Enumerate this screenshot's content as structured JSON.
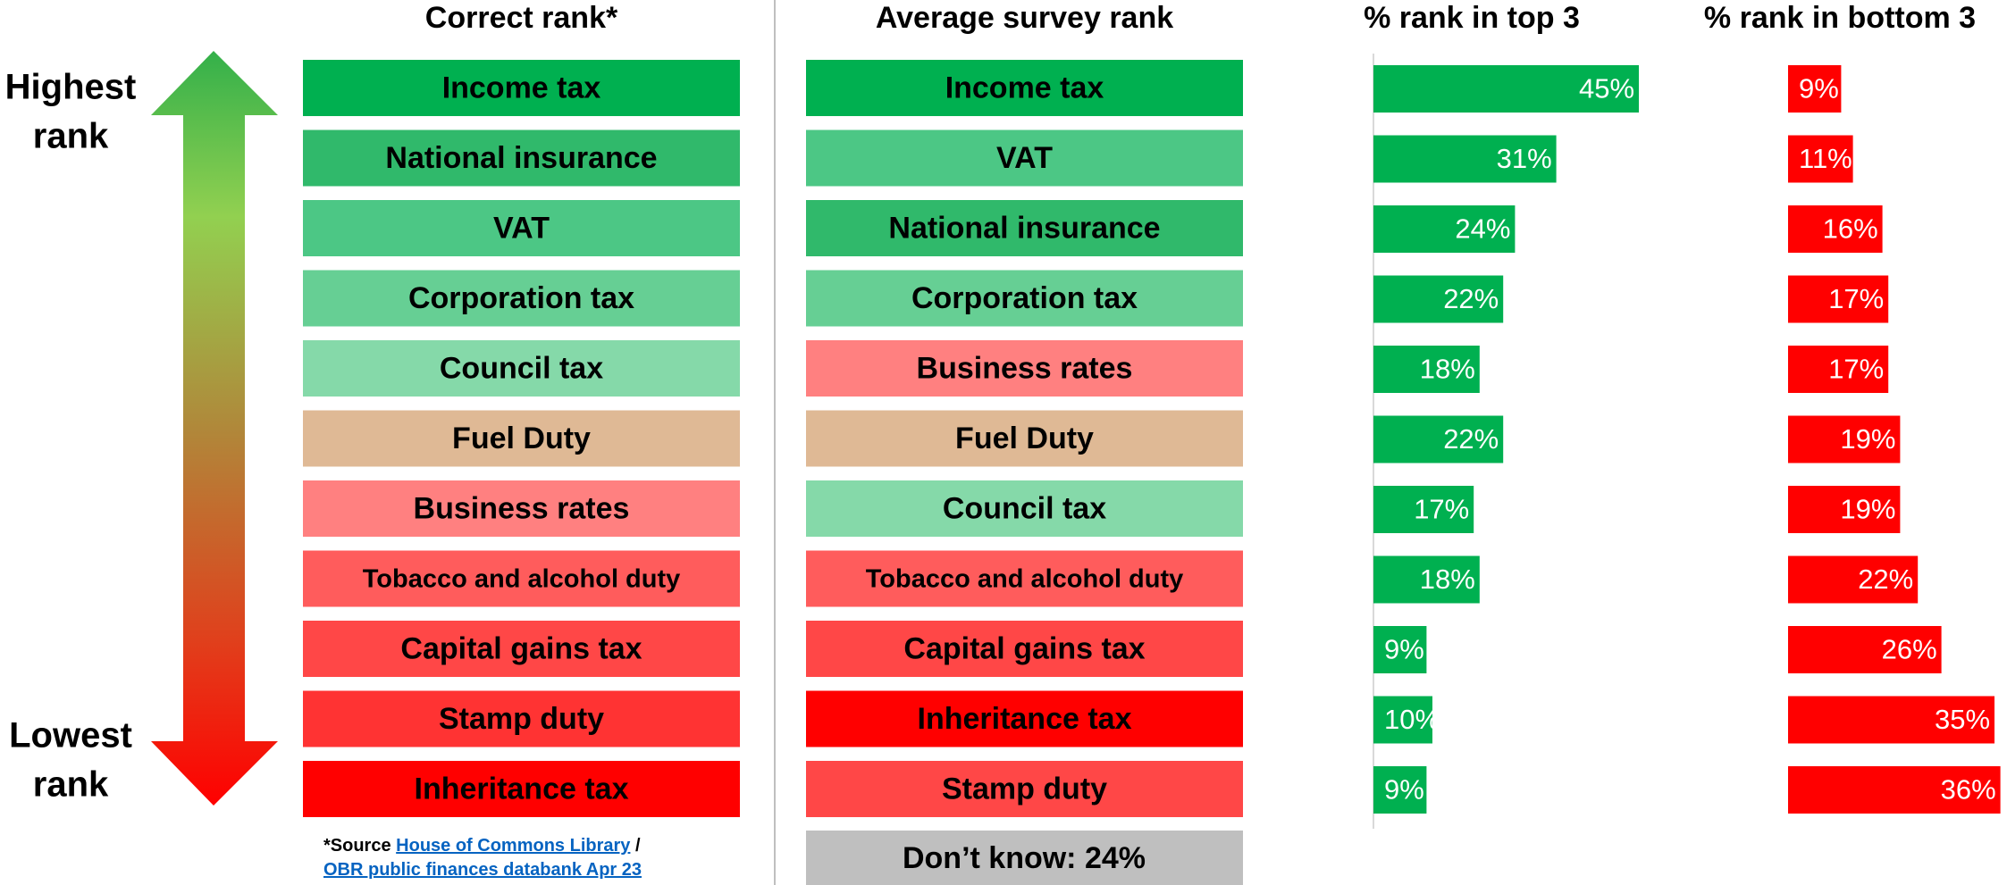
{
  "arrow": {
    "top_label": [
      "Highest",
      "rank"
    ],
    "bottom_label": [
      "Lowest",
      "rank"
    ]
  },
  "correct_rank": {
    "title": "Correct rank*",
    "items": [
      {
        "label": "Income tax",
        "color": "#00b050"
      },
      {
        "label": "National insurance",
        "color": "#30b96b"
      },
      {
        "label": "VAT",
        "color": "#4cc785"
      },
      {
        "label": "Corporation tax",
        "color": "#66cf94"
      },
      {
        "label": "Council tax",
        "color": "#85d9a9"
      },
      {
        "label": "Fuel Duty",
        "color": "#dfb995"
      },
      {
        "label": "Business rates",
        "color": "#ff8080"
      },
      {
        "label": "Tobacco and alcohol duty",
        "color": "#ff5c5c"
      },
      {
        "label": "Capital gains tax",
        "color": "#ff4747"
      },
      {
        "label": "Stamp duty",
        "color": "#ff3333"
      },
      {
        "label": "Inheritance tax",
        "color": "#ff0000"
      }
    ]
  },
  "source": {
    "prefix": "*Source ",
    "separator": " /",
    "links": [
      "House of Commons Library",
      "OBR public finances databank Apr 23"
    ]
  },
  "survey_rank": {
    "title": "Average survey rank",
    "items": [
      {
        "label": "Income tax",
        "color": "#00b050"
      },
      {
        "label": "VAT",
        "color": "#4cc785"
      },
      {
        "label": "National insurance",
        "color": "#30b96b"
      },
      {
        "label": "Corporation tax",
        "color": "#66cf94"
      },
      {
        "label": "Business rates",
        "color": "#ff8080"
      },
      {
        "label": "Fuel Duty",
        "color": "#dfb995"
      },
      {
        "label": "Council tax",
        "color": "#85d9a9"
      },
      {
        "label": "Tobacco and alcohol duty",
        "color": "#ff5c5c"
      },
      {
        "label": "Capital gains tax",
        "color": "#ff4747"
      },
      {
        "label": "Inheritance tax",
        "color": "#ff0000"
      },
      {
        "label": "Stamp duty",
        "color": "#ff4747"
      }
    ],
    "dont_know": "Don’t know: 24%",
    "dont_know_color": "#bfbfbf"
  },
  "chart_data": [
    {
      "type": "bar",
      "title": "% rank in top 3",
      "color": "#00b050",
      "xlim": [
        0,
        100
      ],
      "values": [
        45,
        31,
        24,
        22,
        18,
        22,
        17,
        18,
        9,
        10,
        9
      ],
      "value_labels": [
        "45%",
        "31%",
        "24%",
        "22%",
        "18%",
        "22%",
        "17%",
        "18%",
        "9%",
        "10%",
        "9%"
      ]
    },
    {
      "type": "bar",
      "title": "% rank in bottom 3",
      "color": "#ff0000",
      "xlim": [
        0,
        100
      ],
      "values": [
        9,
        11,
        16,
        17,
        17,
        19,
        19,
        22,
        26,
        35,
        36
      ],
      "value_labels": [
        "9%",
        "11%",
        "16%",
        "17%",
        "17%",
        "19%",
        "19%",
        "22%",
        "26%",
        "35%",
        "36%"
      ]
    }
  ]
}
